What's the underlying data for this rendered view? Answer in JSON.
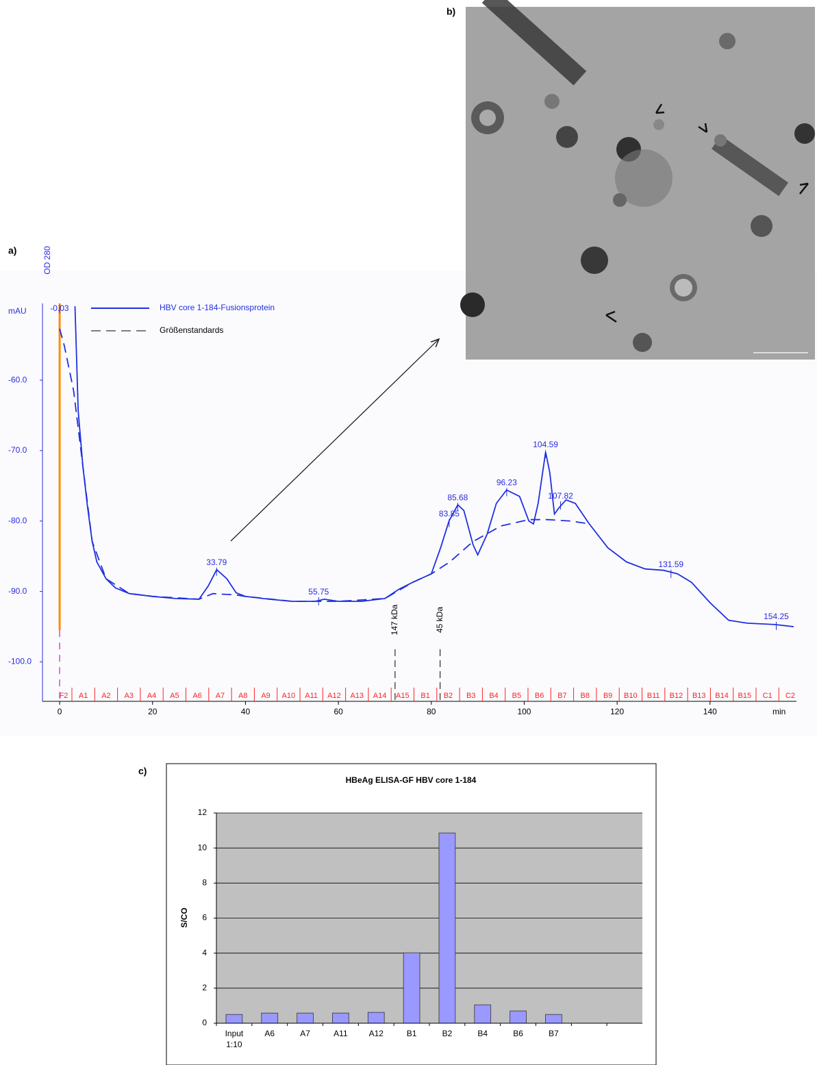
{
  "panels": {
    "a": "a)",
    "b": "b)",
    "c": "c)"
  },
  "chart_data": [
    {
      "type": "line",
      "y_axis_label": "OD 280",
      "y_unit": "mAU",
      "x_unit": "min",
      "xlim": [
        -3.7,
        158.6
      ],
      "ylim": [
        -105.6,
        -49.1
      ],
      "xticks": [
        0,
        20,
        40,
        60,
        80,
        100,
        120,
        140
      ],
      "yticks": [
        {
          "value": -60,
          "label": "-60.0"
        },
        {
          "value": -70,
          "label": "-70.0"
        },
        {
          "value": -80,
          "label": "-80.0"
        },
        {
          "value": -90,
          "label": "-90.0"
        },
        {
          "value": -100,
          "label": "-100.0"
        }
      ],
      "series": [
        {
          "name": "HBV core 1-184-Fusionsprotein",
          "color": "#1f2fe0",
          "dashed": false,
          "x": [
            3.3,
            4,
            5,
            6,
            7,
            8,
            10,
            12,
            15,
            20,
            25,
            30,
            32,
            33.8,
            36,
            38,
            40,
            45,
            50,
            55,
            57,
            60,
            65,
            70,
            73,
            76,
            80,
            82,
            83.8,
            85.7,
            87,
            89,
            90,
            92,
            94,
            96.2,
            99,
            101,
            102,
            103,
            104.6,
            105.5,
            106.5,
            107.5,
            109,
            111,
            114,
            118,
            122,
            126,
            130,
            133,
            136,
            140,
            144,
            148,
            154,
            158
          ],
          "values": [
            -49.5,
            -64.4,
            -72.2,
            -78,
            -82.9,
            -85.8,
            -88.2,
            -89.5,
            -90.3,
            -90.7,
            -91,
            -91.1,
            -89.2,
            -86.9,
            -88.2,
            -90.2,
            -90.7,
            -91.1,
            -91.4,
            -91.4,
            -91.1,
            -91.4,
            -91.4,
            -91,
            -89.7,
            -88.7,
            -87.5,
            -83.8,
            -80,
            -77.7,
            -78.5,
            -83.4,
            -84.8,
            -81.9,
            -77.5,
            -75.6,
            -76.5,
            -80,
            -80.4,
            -77.5,
            -70.2,
            -73.1,
            -79,
            -78.1,
            -77,
            -77.5,
            -80.4,
            -83.8,
            -85.8,
            -86.8,
            -87,
            -87.5,
            -88.7,
            -91.6,
            -94.1,
            -94.5,
            -94.7,
            -95
          ]
        },
        {
          "name": "Größenstandards",
          "color": "#1f2fe0",
          "dashed": true,
          "x": [
            0,
            1,
            3,
            5,
            7,
            10,
            15,
            20,
            30,
            33,
            38,
            40,
            50,
            60,
            70,
            76,
            80,
            84,
            89,
            95,
            101,
            105,
            110,
            114
          ],
          "values": [
            -52.7,
            -55.1,
            -61.5,
            -72.2,
            -82.9,
            -88.2,
            -90.3,
            -90.7,
            -91.1,
            -90.3,
            -90.5,
            -90.7,
            -91.4,
            -91.4,
            -91,
            -88.7,
            -87.5,
            -85.8,
            -82.9,
            -80.7,
            -79.8,
            -79.8,
            -80,
            -80.4
          ]
        }
      ],
      "peak_labels": [
        {
          "label": "-0.03",
          "x": -0.03,
          "y": -49.6
        },
        {
          "label": "33.79",
          "x": 33.79,
          "y": -86.9
        },
        {
          "label": "55.75",
          "x": 55.75,
          "y": -91.1
        },
        {
          "label": "83.85",
          "x": 83.85,
          "y": -80
        },
        {
          "label": "85.68",
          "x": 85.68,
          "y": -77.7
        },
        {
          "label": "96.23",
          "x": 96.23,
          "y": -75.6
        },
        {
          "label": "104.59",
          "x": 104.59,
          "y": -70.2
        },
        {
          "label": "107.82",
          "x": 107.82,
          "y": -77.5
        },
        {
          "label": "131.59",
          "x": 131.59,
          "y": -87.2
        },
        {
          "label": "154.25",
          "x": 154.25,
          "y": -94.6
        }
      ],
      "markers": [
        {
          "x": 72.2,
          "label": "147 kDa"
        },
        {
          "x": 81.9,
          "label": "45 kDa"
        }
      ],
      "fractions": [
        "F2",
        "A1",
        "A2",
        "A3",
        "A4",
        "A5",
        "A6",
        "A7",
        "A8",
        "A9",
        "A10",
        "A11",
        "A12",
        "A13",
        "A14",
        "A15",
        "B1",
        "B2",
        "B3",
        "B4",
        "B5",
        "B6",
        "B7",
        "B8",
        "B9",
        "B10",
        "B11",
        "B12",
        "B13",
        "B14",
        "B15",
        "C1",
        "C2"
      ],
      "fraction_color": "#ff2020",
      "start_line_color": "#ff8c00"
    },
    {
      "type": "bar",
      "title": "HBeAg ELISA-GF HBV core 1-184",
      "y_axis_label": "S/CO",
      "categories": [
        "Input 1:10",
        "A6",
        "A7",
        "A11",
        "A12",
        "B1",
        "B2",
        "B4",
        "B6",
        "B7",
        null,
        null
      ],
      "values": [
        0.5,
        0.58,
        0.58,
        0.58,
        0.62,
        4.02,
        10.86,
        1.05,
        0.7,
        0.5,
        null,
        null
      ],
      "color": "#9999ff",
      "background": "#c0c0c0",
      "ylim": [
        0,
        12
      ],
      "yticks": [
        0,
        2,
        4,
        6,
        8,
        10,
        12
      ],
      "grid": true
    }
  ]
}
